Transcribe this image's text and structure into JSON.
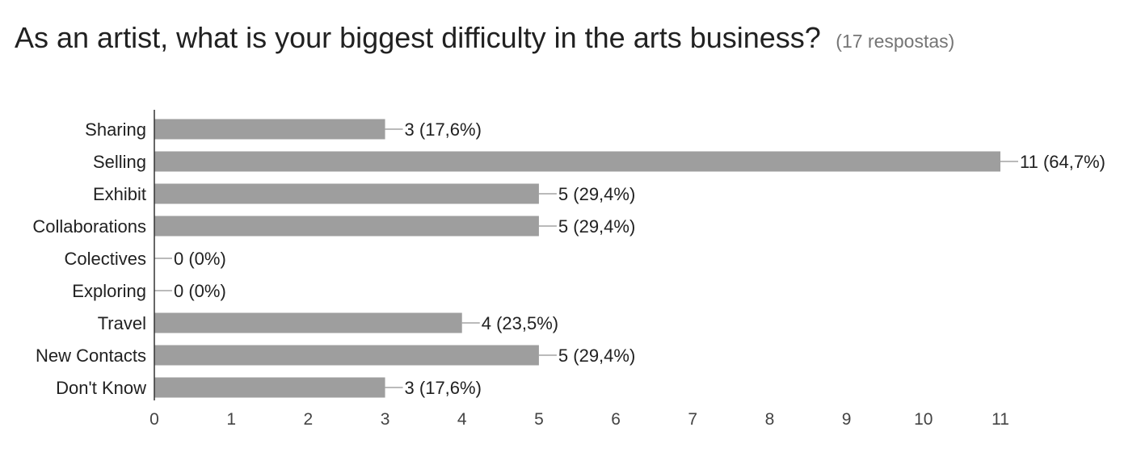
{
  "header": {
    "title": "As an artist, what is your biggest difficulty in the arts business?",
    "count": "(17 respostas)"
  },
  "colors": {
    "bar": "#9e9e9e",
    "text": "#212121",
    "muted": "#757575",
    "axis": "#333333"
  },
  "chart_data": {
    "type": "bar",
    "orientation": "horizontal",
    "categories": [
      "Sharing",
      "Selling",
      "Exhibit",
      "Collaborations",
      "Colectives",
      "Exploring",
      "Travel",
      "New Contacts",
      "Don't Know"
    ],
    "values": [
      3,
      11,
      5,
      5,
      0,
      0,
      4,
      5,
      3
    ],
    "data_labels": [
      "3 (17,6%)",
      "11 (64,7%)",
      "5 (29,4%)",
      "5 (29,4%)",
      "0 (0%)",
      "0 (0%)",
      "4 (23,5%)",
      "5 (29,4%)",
      "3 (17,6%)"
    ],
    "xticks": [
      "0",
      "1",
      "2",
      "3",
      "4",
      "5",
      "6",
      "7",
      "8",
      "9",
      "10",
      "11"
    ],
    "xlim": [
      0,
      11
    ],
    "grid": false
  }
}
